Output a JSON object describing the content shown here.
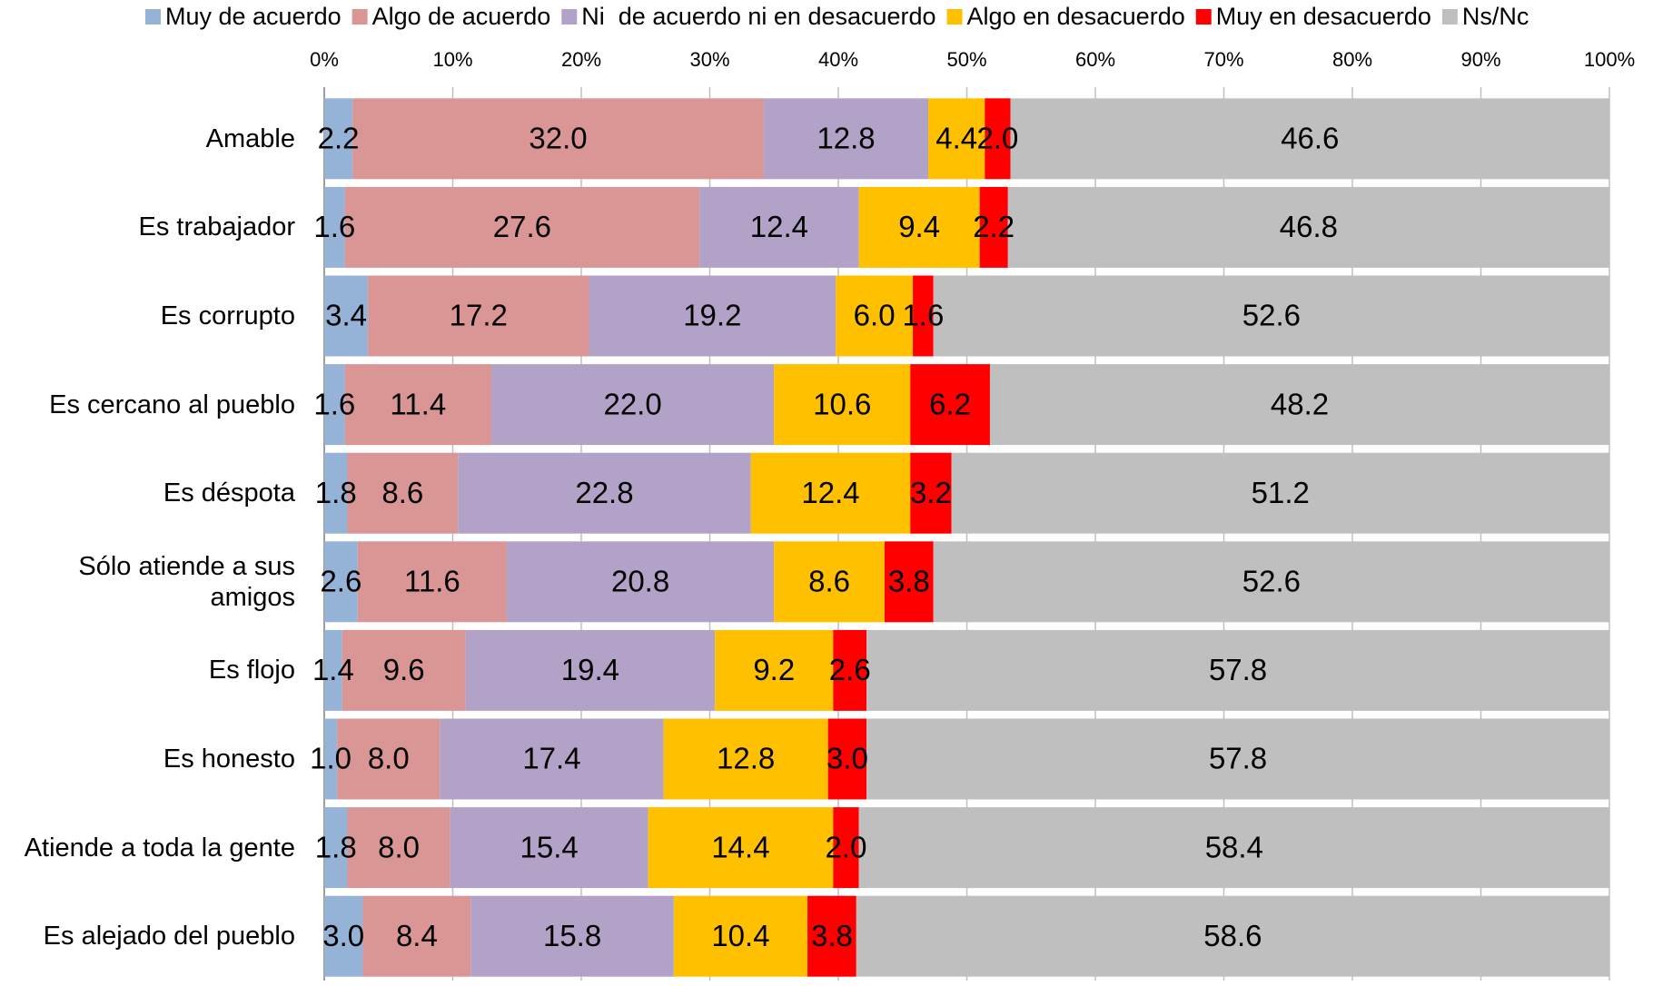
{
  "chart_data": {
    "type": "stacked_barh",
    "categories": [
      "Amable",
      "Es trabajador",
      "Es corrupto",
      "Es cercano al pueblo",
      "Es déspota",
      "Sólo atiende a sus amigos",
      "Es flojo",
      "Es honesto",
      "Atiende a toda la gente",
      "Es alejado del pueblo"
    ],
    "series": [
      {
        "name": "Muy de acuerdo",
        "color": "#95b3d7",
        "values": [
          2.2,
          1.6,
          3.4,
          1.6,
          1.8,
          2.6,
          1.4,
          1.0,
          1.8,
          3.0
        ],
        "value_labels": [
          "2.2",
          "1.6",
          "3.4",
          "1.6",
          "1.8",
          "2.6",
          "1.4",
          "1.0",
          "1.8",
          "3.0"
        ]
      },
      {
        "name": "Algo de acuerdo",
        "color": "#d99694",
        "values": [
          32.0,
          27.6,
          17.2,
          11.4,
          8.6,
          11.6,
          9.6,
          8.0,
          8.0,
          8.4
        ],
        "value_labels": [
          "32.0",
          "27.6",
          "17.2",
          "11.4",
          "8.6",
          "11.6",
          "9.6",
          "8.0",
          "8.0",
          "8.4"
        ]
      },
      {
        "name": "Ni  de acuerdo ni en desacuerdo",
        "color": "#b3a2c7",
        "values": [
          12.8,
          12.4,
          19.2,
          22.0,
          22.8,
          20.8,
          19.4,
          17.4,
          15.4,
          15.8
        ],
        "value_labels": [
          "12.8",
          "12.4",
          "19.2",
          "22.0",
          "22.8",
          "20.8",
          "19.4",
          "17.4",
          "15.4",
          "15.8"
        ]
      },
      {
        "name": "Algo en desacuerdo",
        "color": "#ffc000",
        "values": [
          4.4,
          9.4,
          6.0,
          10.6,
          12.4,
          8.6,
          9.2,
          12.8,
          14.4,
          10.4
        ],
        "value_labels": [
          "4.4",
          "9.4",
          "6.0",
          "10.6",
          "12.4",
          "8.6",
          "9.2",
          "12.8",
          "14.4",
          "10.4"
        ]
      },
      {
        "name": "Muy en desacuerdo",
        "color": "#ff0000",
        "values": [
          2.0,
          2.2,
          1.6,
          6.2,
          3.2,
          3.8,
          2.6,
          3.0,
          2.0,
          3.8
        ],
        "value_labels": [
          "2.0",
          "2.2",
          "1.6",
          "6.2",
          "3.2",
          "3.8",
          "2.6",
          "3.0",
          "2.0",
          "3.8"
        ]
      },
      {
        "name": "Ns/Nc",
        "color": "#bfbfbf",
        "values": [
          46.6,
          46.8,
          52.6,
          48.2,
          51.2,
          52.6,
          57.8,
          57.8,
          58.4,
          58.6
        ],
        "value_labels": [
          "46.6",
          "46.8",
          "52.6",
          "48.2",
          "51.2",
          "52.6",
          "57.8",
          "57.8",
          "58.4",
          "58.6"
        ]
      }
    ],
    "xlim": [
      0,
      100
    ],
    "xticks": [
      {
        "value": 0,
        "label": "0%"
      },
      {
        "value": 10,
        "label": "10%"
      },
      {
        "value": 20,
        "label": "20%"
      },
      {
        "value": 30,
        "label": "30%"
      },
      {
        "value": 40,
        "label": "40%"
      },
      {
        "value": 50,
        "label": "50%"
      },
      {
        "value": 60,
        "label": "60%"
      },
      {
        "value": 70,
        "label": "70%"
      },
      {
        "value": 80,
        "label": "80%"
      },
      {
        "value": 90,
        "label": "90%"
      },
      {
        "value": 100,
        "label": "100%"
      }
    ],
    "grid": true,
    "legend": "top"
  }
}
